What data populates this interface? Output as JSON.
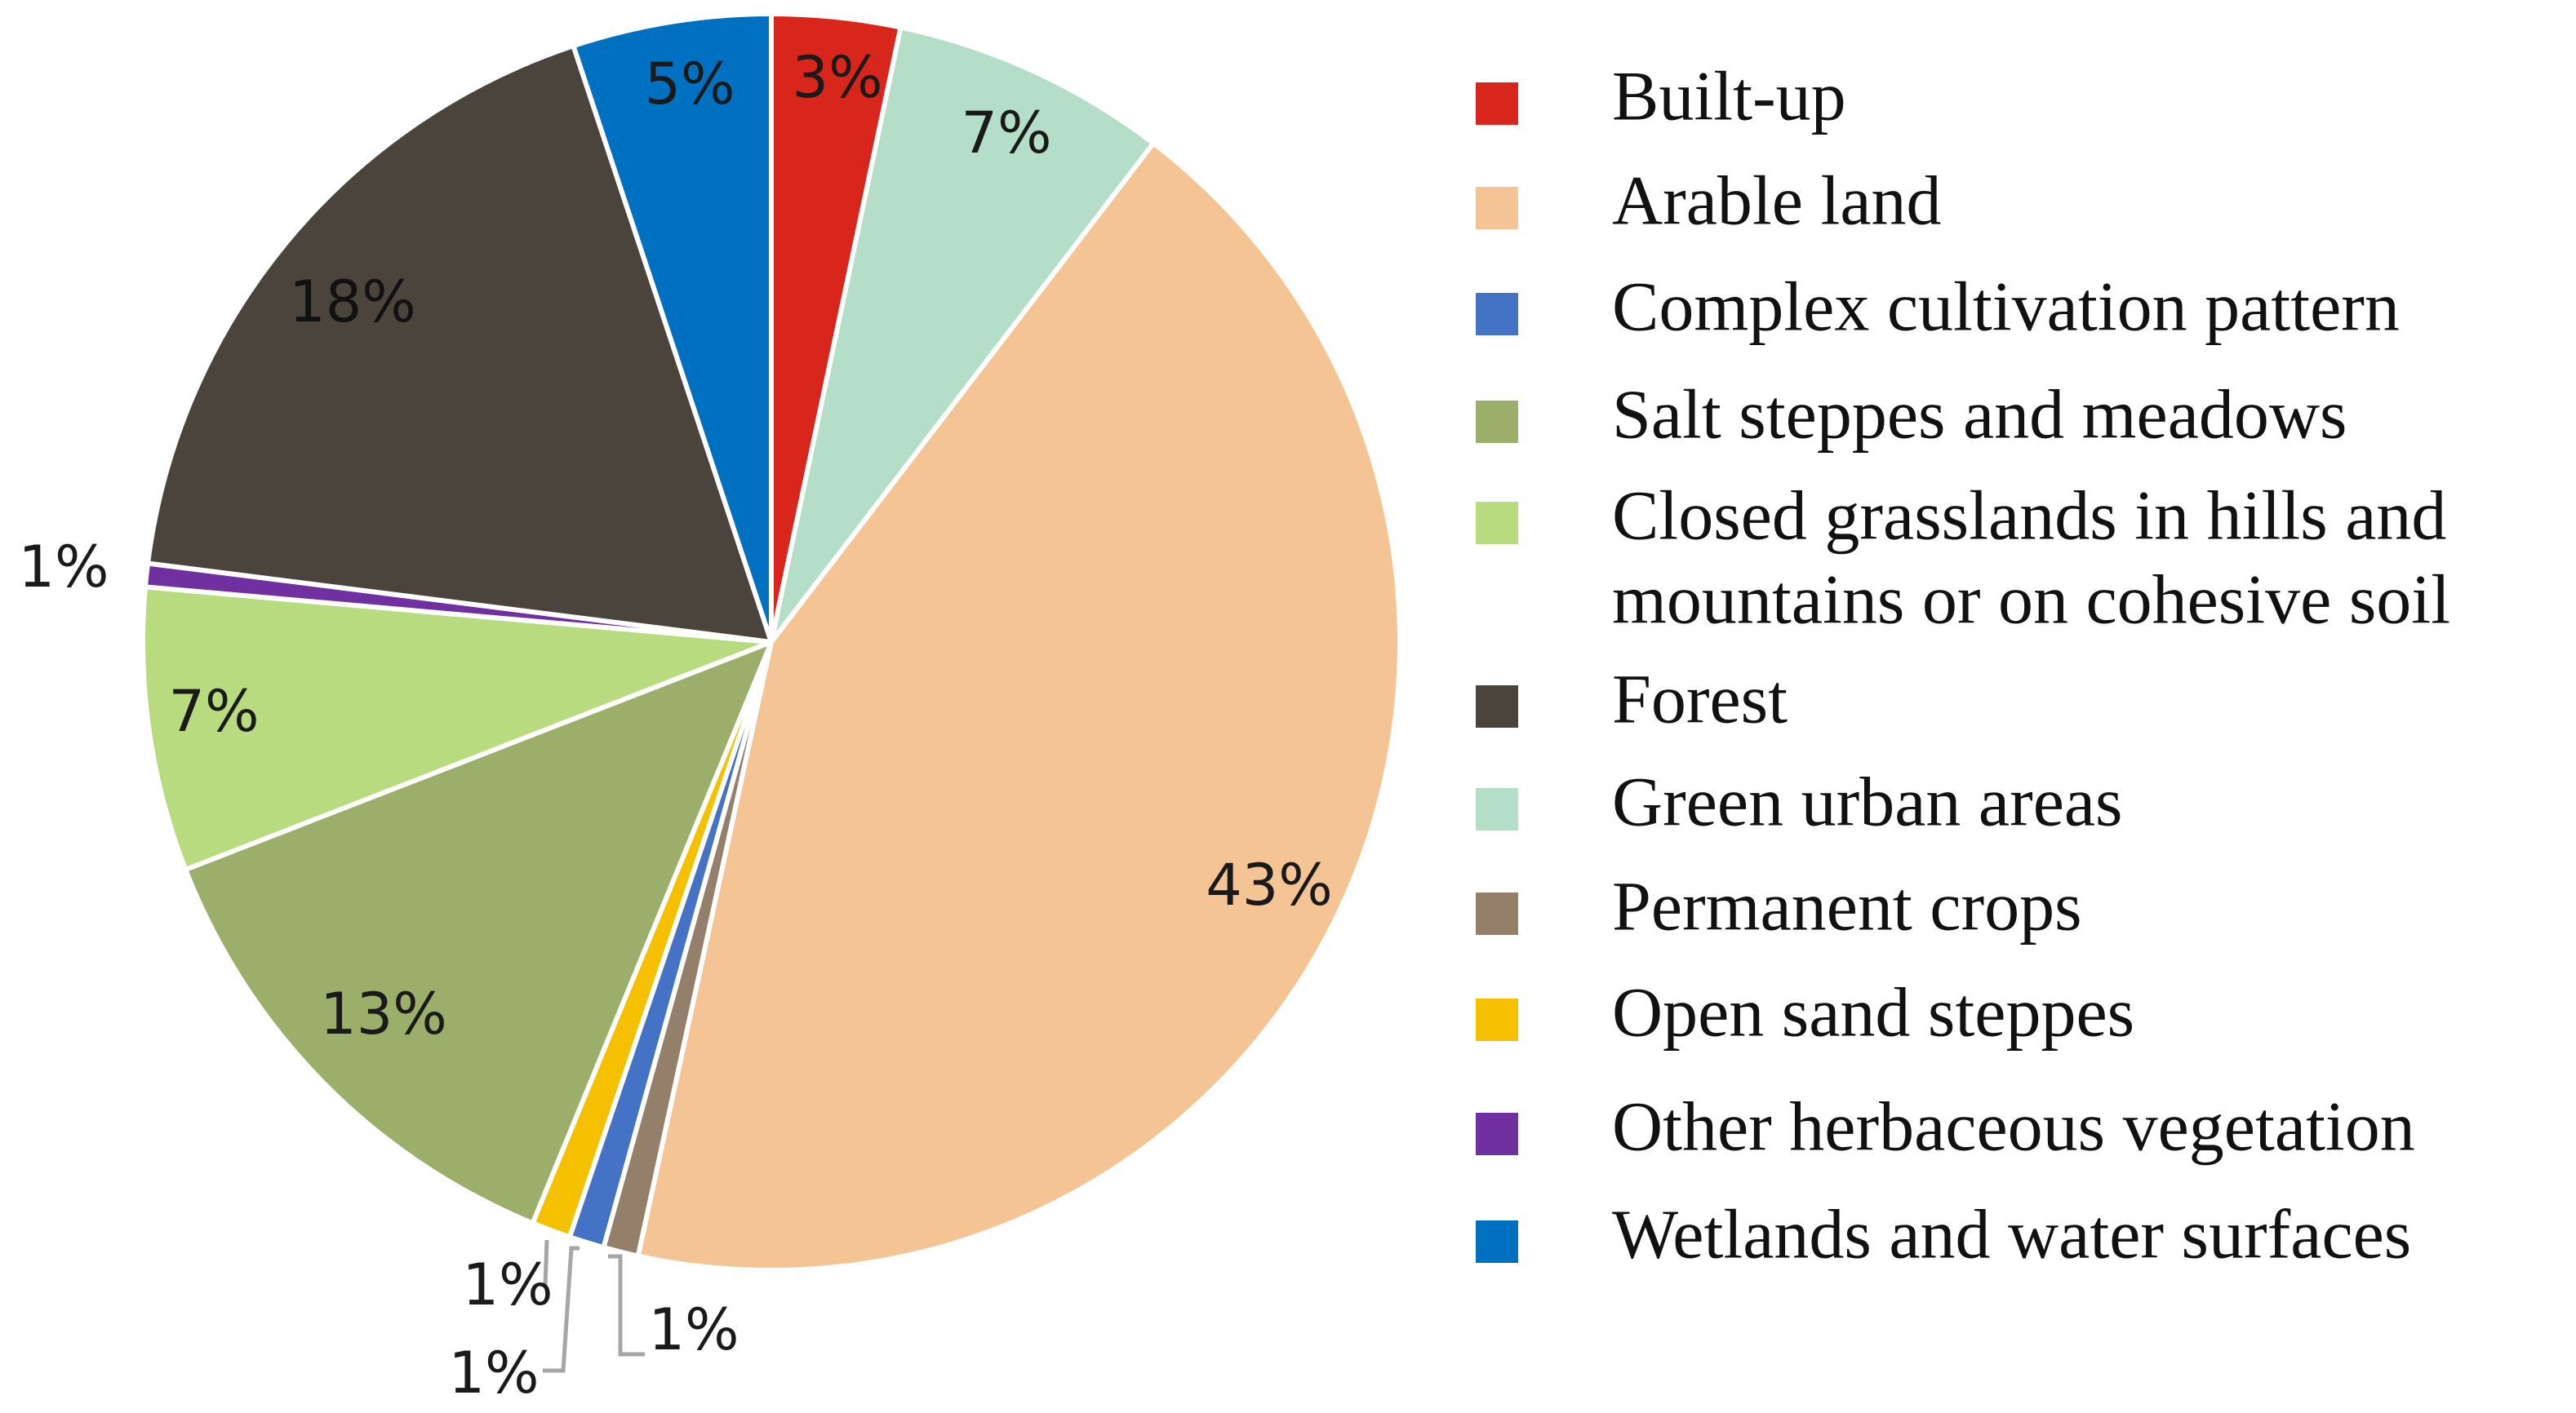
{
  "chart_data": {
    "type": "pie",
    "title": "",
    "start_angle_deg": 0,
    "direction": "clockwise",
    "slices": [
      {
        "key": "built-up",
        "name": "Built-up",
        "value": 3.3,
        "label": "3%",
        "color": "#D9261C",
        "label_color": "#1a1a1a"
      },
      {
        "key": "green-urban",
        "name": "Green urban areas",
        "value": 7.1,
        "label": "7%",
        "color": "#B5DEC9",
        "label_color": "#1a1a1a"
      },
      {
        "key": "arable",
        "name": "Arable land",
        "value": 43.0,
        "label": "43%",
        "color": "#F4C494",
        "label_color": "#1a1a1a"
      },
      {
        "key": "permanent-crops",
        "name": "Permanent crops",
        "value": 0.9,
        "label": "1%",
        "color": "#94806A",
        "label_color": "#1a1a1a",
        "leader": true
      },
      {
        "key": "complex-cultivation",
        "name": "Complex cultivation pattern",
        "value": 0.9,
        "label": "1%",
        "color": "#4472C4",
        "label_color": "#1a1a1a",
        "leader": true
      },
      {
        "key": "open-sand",
        "name": "Open sand steppes",
        "value": 1.0,
        "label": "1%",
        "color": "#F5C000",
        "label_color": "#1a1a1a",
        "leader": true
      },
      {
        "key": "salt-steppes",
        "name": "Salt steppes and meadows",
        "value": 12.9,
        "label": "13%",
        "color": "#9BAF6B",
        "label_color": "#1a1a1a"
      },
      {
        "key": "closed-grasslands",
        "name": "Closed grasslands in hills and mountains or on cohesive soil",
        "value": 7.3,
        "label": "7%",
        "color": "#B9DB7F",
        "label_color": "#1a1a1a"
      },
      {
        "key": "other-herbaceous",
        "name": "Other herbaceous vegetation",
        "value": 0.6,
        "label": "1%",
        "color": "#7030A0",
        "label_color": "#1a1a1a"
      },
      {
        "key": "forest",
        "name": "Forest",
        "value": 17.9,
        "label": "18%",
        "color": "#4A443D",
        "label_color": "#111111"
      },
      {
        "key": "wetlands",
        "name": "Wetlands and water surfaces",
        "value": 5.1,
        "label": "5%",
        "color": "#0070C0",
        "label_color": "#1a1a1a"
      }
    ],
    "legend": {
      "position": "right",
      "items": [
        {
          "name": "Built-up",
          "color": "#D9261C",
          "lines": [
            "Built-up"
          ]
        },
        {
          "name": "Arable land",
          "color": "#F4C494",
          "lines": [
            "Arable land"
          ]
        },
        {
          "name": "Complex cultivation pattern",
          "color": "#4472C4",
          "lines": [
            "Complex cultivation pattern"
          ]
        },
        {
          "name": "Salt steppes and meadows",
          "color": "#9BAF6B",
          "lines": [
            "Salt steppes and meadows"
          ]
        },
        {
          "name": "Closed grasslands in hills and mountains or on cohesive soil",
          "color": "#B9DB7F",
          "lines": [
            "Closed grasslands in hills and",
            "mountains or on cohesive soil"
          ]
        },
        {
          "name": "Forest",
          "color": "#4A443D",
          "lines": [
            "Forest"
          ]
        },
        {
          "name": "Green urban areas",
          "color": "#B5DEC9",
          "lines": [
            "Green urban areas"
          ]
        },
        {
          "name": "Permanent crops",
          "color": "#94806A",
          "lines": [
            "Permanent crops"
          ]
        },
        {
          "name": "Open sand steppes",
          "color": "#F5C000",
          "lines": [
            "Open sand steppes"
          ]
        },
        {
          "name": "Other herbaceous vegetation",
          "color": "#7030A0",
          "lines": [
            "Other herbaceous vegetation"
          ]
        },
        {
          "name": "Wetlands and water surfaces",
          "color": "#0070C0",
          "lines": [
            "Wetlands and water surfaces"
          ]
        }
      ]
    }
  }
}
